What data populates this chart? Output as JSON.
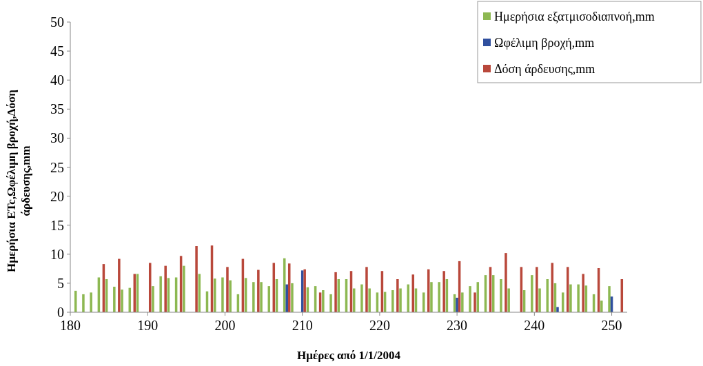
{
  "chart_data": {
    "type": "bar",
    "xlabel": "Ημέρες από 1/1/2004",
    "ylabel": "Ημερήσια ETc,Ωφέλιμη βροχή,Δόση άρδευσης,mm",
    "x": [
      181,
      182,
      183,
      184,
      185,
      186,
      187,
      188,
      189,
      190,
      191,
      192,
      193,
      194,
      195,
      196,
      197,
      198,
      199,
      200,
      201,
      202,
      203,
      204,
      205,
      206,
      207,
      208,
      209,
      210,
      211,
      212,
      213,
      214,
      215,
      216,
      217,
      218,
      219,
      220,
      221,
      222,
      223,
      224,
      225,
      226,
      227,
      228,
      229,
      230,
      231,
      232,
      233,
      234,
      235,
      236,
      237,
      238,
      239,
      240,
      241,
      242,
      243,
      244,
      245,
      246,
      247,
      248,
      249,
      250,
      251
    ],
    "series": [
      {
        "name": "Ημερήσια εξατμισοδιαπνοή,mm",
        "color": "#8db852",
        "values": [
          3.7,
          3.1,
          3.4,
          6.0,
          5.7,
          4.4,
          3.9,
          4.2,
          6.6,
          null,
          4.5,
          6.2,
          5.9,
          6.0,
          8.0,
          null,
          6.6,
          3.6,
          5.8,
          6.0,
          5.5,
          3.1,
          5.9,
          5.2,
          5.2,
          4.5,
          5.7,
          9.3,
          5.0,
          null,
          4.3,
          4.5,
          3.8,
          3.1,
          5.7,
          5.7,
          4.1,
          4.8,
          4.1,
          3.4,
          3.5,
          3.8,
          4.1,
          4.8,
          4.1,
          3.4,
          5.2,
          5.2,
          5.7,
          3.1,
          3.4,
          4.5,
          5.2,
          6.4,
          6.4,
          5.7,
          4.1,
          null,
          3.8,
          6.4,
          4.1,
          5.7,
          5.0,
          3.4,
          4.8,
          4.8,
          4.6,
          3.1,
          2.0,
          4.5,
          null
        ]
      },
      {
        "name": "Ωφέλιμη βροχή,mm",
        "color": "#2f4f9e",
        "values": [
          null,
          null,
          null,
          null,
          null,
          null,
          null,
          null,
          null,
          null,
          null,
          null,
          null,
          null,
          null,
          null,
          null,
          null,
          null,
          null,
          null,
          null,
          null,
          null,
          null,
          null,
          null,
          4.8,
          null,
          7.2,
          null,
          null,
          null,
          null,
          null,
          null,
          null,
          null,
          null,
          null,
          null,
          null,
          null,
          null,
          null,
          null,
          null,
          null,
          null,
          2.5,
          null,
          null,
          null,
          null,
          null,
          null,
          null,
          null,
          null,
          null,
          null,
          null,
          0.9,
          null,
          null,
          null,
          null,
          null,
          null,
          2.7,
          null
        ]
      },
      {
        "name": "Δόση άρδευσης,mm",
        "color": "#b9483b",
        "values": [
          null,
          null,
          null,
          8.3,
          null,
          9.2,
          null,
          6.6,
          null,
          8.5,
          null,
          8.0,
          null,
          9.7,
          null,
          11.4,
          null,
          11.5,
          null,
          7.8,
          null,
          9.2,
          null,
          7.3,
          null,
          8.5,
          null,
          8.4,
          null,
          7.4,
          null,
          3.4,
          null,
          6.9,
          null,
          7.1,
          null,
          7.8,
          null,
          7.1,
          null,
          5.7,
          null,
          6.5,
          null,
          7.4,
          null,
          7.1,
          null,
          8.8,
          null,
          3.4,
          null,
          7.8,
          null,
          10.2,
          null,
          7.8,
          null,
          7.8,
          null,
          8.5,
          null,
          7.8,
          null,
          6.6,
          null,
          7.6,
          null,
          null,
          5.7
        ]
      }
    ],
    "xlim": [
      180,
      252
    ],
    "xticks": [
      180,
      190,
      200,
      210,
      220,
      230,
      240,
      250
    ],
    "ylim": [
      0,
      50
    ],
    "yticks": [
      0,
      5,
      10,
      15,
      20,
      25,
      30,
      35,
      40,
      45,
      50
    ],
    "grid": false,
    "legend": "top right"
  }
}
